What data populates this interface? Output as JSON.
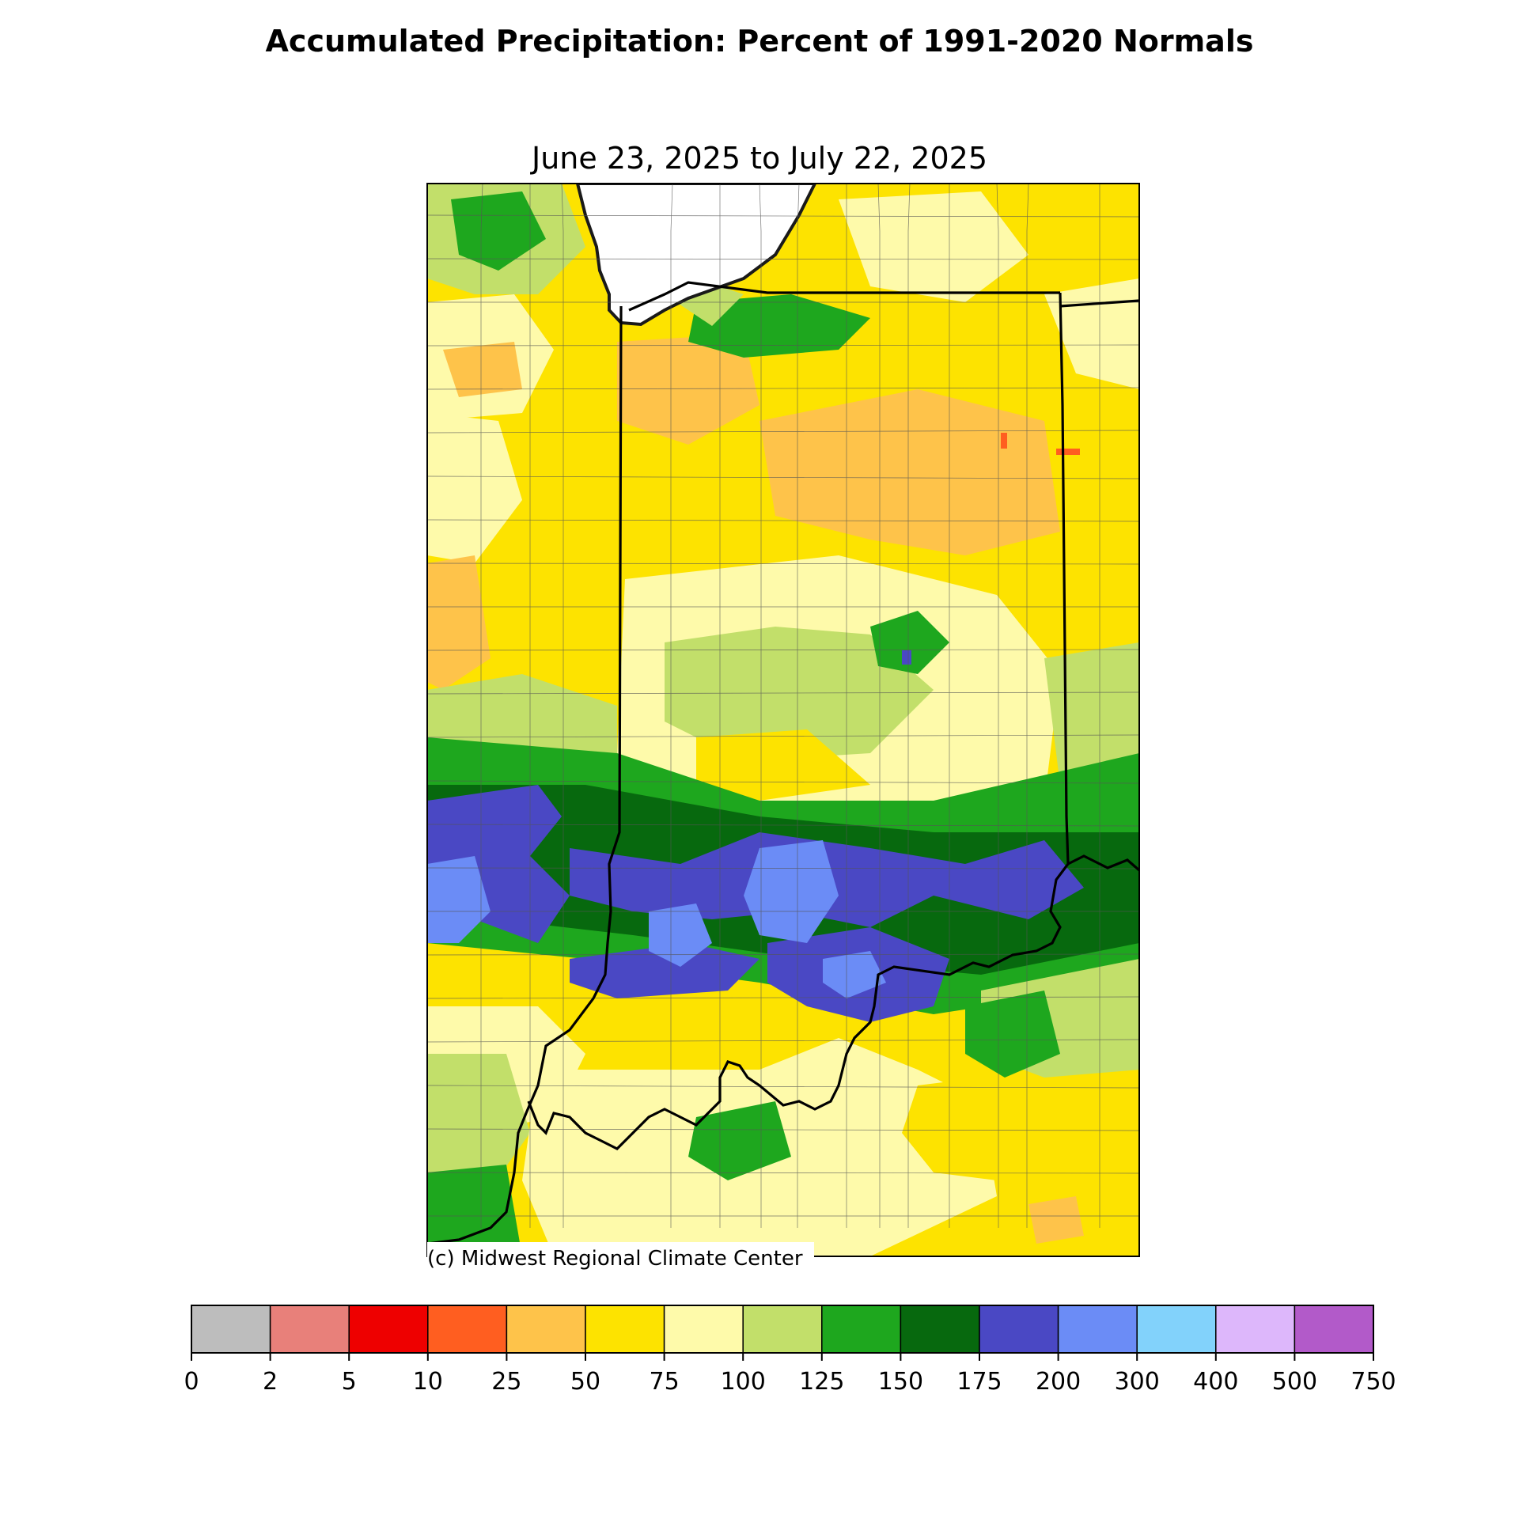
{
  "title": "Accumulated Precipitation: Percent of 1991-2020 Normals",
  "subtitle": "June 23, 2025 to July 22, 2025",
  "credit": "(c) Midwest Regional Climate Center",
  "legend": {
    "ticks": [
      "0",
      "2",
      "5",
      "10",
      "25",
      "50",
      "75",
      "100",
      "125",
      "150",
      "175",
      "200",
      "300",
      "400",
      "500",
      "750"
    ],
    "bins": [
      {
        "range": "0-2",
        "color": "#bdbdbd"
      },
      {
        "range": "2-5",
        "color": "#e8807a"
      },
      {
        "range": "5-10",
        "color": "#ee0000"
      },
      {
        "range": "10-25",
        "color": "#ff5e20"
      },
      {
        "range": "25-50",
        "color": "#fec34a"
      },
      {
        "range": "50-75",
        "color": "#fde300"
      },
      {
        "range": "75-100",
        "color": "#fefaaa"
      },
      {
        "range": "100-125",
        "color": "#c2df6a"
      },
      {
        "range": "125-150",
        "color": "#1ea71e"
      },
      {
        "range": "150-175",
        "color": "#07690e"
      },
      {
        "range": "175-200",
        "color": "#4a48c4"
      },
      {
        "range": "200-300",
        "color": "#6b8cf6"
      },
      {
        "range": "300-400",
        "color": "#82d2fb"
      },
      {
        "range": "400-500",
        "color": "#ddb7fb"
      },
      {
        "range": "500-750",
        "color": "#b25ac9"
      }
    ]
  },
  "map": {
    "region": "Indiana and surrounding areas",
    "water_color": "#ffffff",
    "state_border_color": "#000000",
    "county_line_color": "#555555",
    "pattern_bands": [
      {
        "area": "northern and central Indiana",
        "category": "50-75 with 25-50 pockets",
        "colors": [
          "#fde300",
          "#fec34a"
        ]
      },
      {
        "area": "north-central Indiana near Lake Michigan",
        "category": "125-150",
        "colors": [
          "#1ea71e"
        ]
      },
      {
        "area": "east-central Indiana",
        "category": "10-25 isolated",
        "colors": [
          "#ff5e20"
        ]
      },
      {
        "area": "central Indiana",
        "category": "75-125",
        "colors": [
          "#fefaaa",
          "#c2df6a"
        ]
      },
      {
        "area": "southern Indiana band",
        "category": "150-300",
        "colors": [
          "#07690e",
          "#4a48c4",
          "#6b8cf6"
        ]
      },
      {
        "area": "Kentucky and far south",
        "category": "75-150",
        "colors": [
          "#fefaaa",
          "#c2df6a",
          "#1ea71e"
        ]
      }
    ]
  }
}
